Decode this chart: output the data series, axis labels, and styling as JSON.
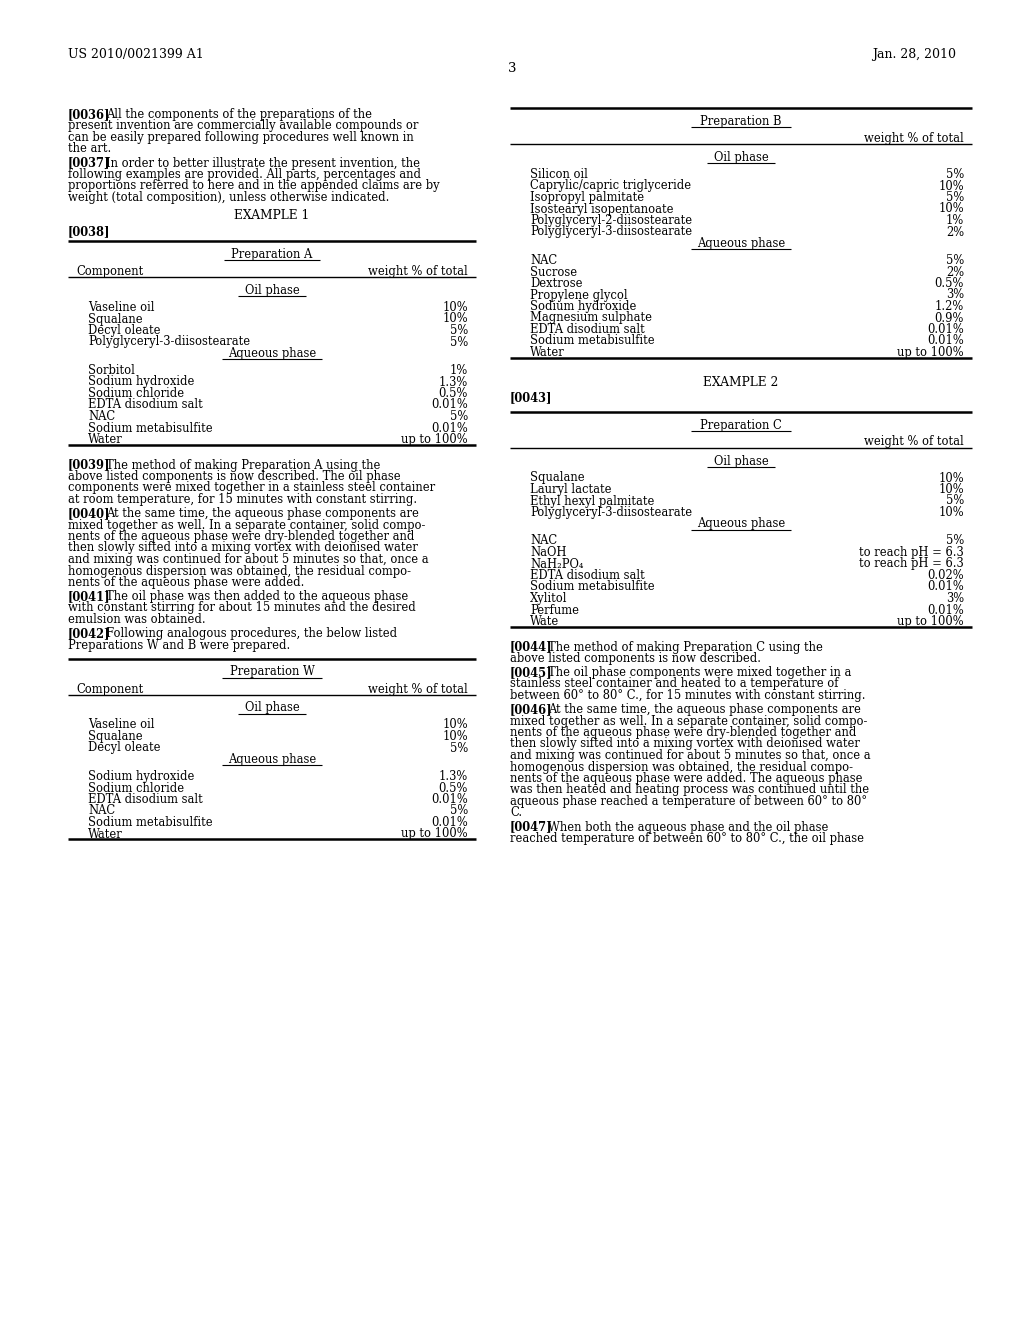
{
  "bg_color": "#ffffff",
  "header_left": "US 2010/0021399 A1",
  "header_right": "Jan. 28, 2010",
  "page_number": "3",
  "prep_A": {
    "title": "Preparation A",
    "col1": "Component",
    "col2": "weight % of total",
    "oil_phase_label": "Oil phase",
    "oil_items": [
      [
        "Vaseline oil",
        "10%"
      ],
      [
        "Squalane",
        "10%"
      ],
      [
        "Decyl oleate",
        "5%"
      ],
      [
        "Polyglyceryl-3-diisostearate",
        "5%"
      ]
    ],
    "aq_phase_label": "Aqueous phase",
    "aq_items": [
      [
        "Sorbitol",
        "1%"
      ],
      [
        "Sodium hydroxide",
        "1.3%"
      ],
      [
        "Sodium chloride",
        "0.5%"
      ],
      [
        "EDTA disodium salt",
        "0.01%"
      ],
      [
        "NAC",
        "5%"
      ],
      [
        "Sodium metabisulfite",
        "0.01%"
      ],
      [
        "Water",
        "up to 100%"
      ]
    ]
  },
  "prep_W": {
    "title": "Preparation W",
    "col1": "Component",
    "col2": "weight % of total",
    "oil_phase_label": "Oil phase",
    "oil_items": [
      [
        "Vaseline oil",
        "10%"
      ],
      [
        "Squalane",
        "10%"
      ],
      [
        "Decyl oleate",
        "5%"
      ]
    ],
    "aq_phase_label": "Aqueous phase",
    "aq_items": [
      [
        "Sodium hydroxide",
        "1.3%"
      ],
      [
        "Sodium chloride",
        "0.5%"
      ],
      [
        "EDTA disodium salt",
        "0.01%"
      ],
      [
        "NAC",
        "5%"
      ],
      [
        "Sodium metabisulfite",
        "0.01%"
      ],
      [
        "Water",
        "up to 100%"
      ]
    ]
  },
  "prep_B": {
    "title": "Preparation B",
    "col2": "weight % of total",
    "oil_phase_label": "Oil phase",
    "oil_items": [
      [
        "Silicon oil",
        "5%"
      ],
      [
        "Caprylic/capric triglyceride",
        "10%"
      ],
      [
        "Isopropyl palmitate",
        "5%"
      ],
      [
        "Isostearyl isopentanoate",
        "10%"
      ],
      [
        "Polyglyceryl-2-diisostearate",
        "1%"
      ],
      [
        "Polyglyceryl-3-diisostearate",
        "2%"
      ]
    ],
    "aq_phase_label": "Aqueous phase",
    "aq_items": [
      [
        "NAC",
        "5%"
      ],
      [
        "Sucrose",
        "2%"
      ],
      [
        "Dextrose",
        "0.5%"
      ],
      [
        "Propylene glycol",
        "3%"
      ],
      [
        "Sodium hydroxide",
        "1.2%"
      ],
      [
        "Magnesium sulphate",
        "0.9%"
      ],
      [
        "EDTA disodium salt",
        "0.01%"
      ],
      [
        "Sodium metabisulfite",
        "0.01%"
      ],
      [
        "Water",
        "up to 100%"
      ]
    ]
  },
  "prep_C": {
    "title": "Preparation C",
    "col2": "weight % of total",
    "oil_phase_label": "Oil phase",
    "oil_items": [
      [
        "Squalane",
        "10%"
      ],
      [
        "Lauryl lactate",
        "10%"
      ],
      [
        "Ethyl hexyl palmitate",
        "5%"
      ],
      [
        "Polyglyceryl-3-diisostearate",
        "10%"
      ]
    ],
    "aq_phase_label": "Aqueous phase",
    "aq_items": [
      [
        "NAC",
        "5%"
      ],
      [
        "NaOH",
        "to reach pH = 6.3"
      ],
      [
        "NaH₂PO₄",
        "to reach pH = 6.3"
      ],
      [
        "EDTA disodium salt",
        "0.02%"
      ],
      [
        "Sodium metabisulfite",
        "0.01%"
      ],
      [
        "Xylitol",
        "3%"
      ],
      [
        "Perfume",
        "0.01%"
      ],
      [
        "Wate",
        "up to 100%"
      ]
    ]
  }
}
